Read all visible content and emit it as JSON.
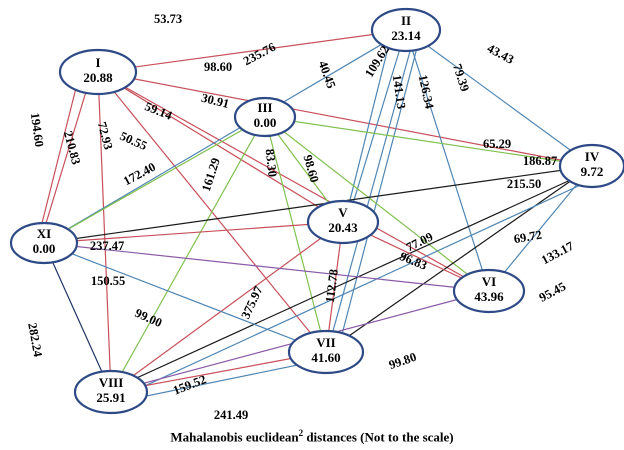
{
  "colors": {
    "red": "#c8505a",
    "blue": "#4f86b4",
    "green": "#7fc04e",
    "black": "#1a1a1a",
    "purple": "#8a5aa8",
    "navy": "#1f3566",
    "node_border": "#2e4a86"
  },
  "nodes": [
    {
      "id": "I",
      "name": "I",
      "value": "20.88"
    },
    {
      "id": "II",
      "name": "II",
      "value": "23.14"
    },
    {
      "id": "III",
      "name": "III",
      "value": "0.00"
    },
    {
      "id": "IV",
      "name": "IV",
      "value": "9.72"
    },
    {
      "id": "V",
      "name": "V",
      "value": "20.43"
    },
    {
      "id": "VI",
      "name": "VI",
      "value": "43.96"
    },
    {
      "id": "VII",
      "name": "VII",
      "value": "41.60"
    },
    {
      "id": "VIII",
      "name": "VIII",
      "value": "25.91"
    },
    {
      "id": "XI",
      "name": "XI",
      "value": "0.00"
    }
  ],
  "edges": [
    {
      "from": "I",
      "to": "II",
      "label": "53.73",
      "color": "red"
    },
    {
      "from": "I",
      "to": "IV",
      "label": "98.60",
      "color": "red"
    },
    {
      "from": "I",
      "to": "V",
      "label": "59.14",
      "color": "red"
    },
    {
      "from": "I",
      "to": "VI",
      "label": "30.91",
      "color": "red"
    },
    {
      "from": "I",
      "to": "VII",
      "label": "50.55",
      "color": "red"
    },
    {
      "from": "I",
      "to": "VIII",
      "label": "72.93",
      "color": "red"
    },
    {
      "from": "I",
      "to": "XI",
      "label": "210.83",
      "color": "red"
    },
    {
      "from": "I",
      "to": "XI",
      "label": "194.60",
      "color": "red"
    },
    {
      "from": "II",
      "to": "XI",
      "label": "235.76",
      "color": "blue"
    },
    {
      "from": "II",
      "to": "IV",
      "label": "43.43",
      "color": "blue"
    },
    {
      "from": "II",
      "to": "V",
      "label": "40.45",
      "color": "blue"
    },
    {
      "from": "II",
      "to": "V",
      "label": "109.62",
      "color": "blue"
    },
    {
      "from": "II",
      "to": "VII",
      "label": "141.13",
      "color": "blue"
    },
    {
      "from": "II",
      "to": "VII",
      "label": "126.34",
      "color": "blue"
    },
    {
      "from": "II",
      "to": "VI",
      "label": "79.39",
      "color": "blue"
    },
    {
      "from": "III",
      "to": "IV",
      "label": "65.29",
      "color": "green"
    },
    {
      "from": "III",
      "to": "XI",
      "label": "172.40",
      "color": "green"
    },
    {
      "from": "III",
      "to": "VIII",
      "label": "161.29",
      "color": "green"
    },
    {
      "from": "III",
      "to": "VII",
      "label": "83.30",
      "color": "green"
    },
    {
      "from": "III",
      "to": "V",
      "label": "98.60",
      "color": "green"
    },
    {
      "from": "III",
      "to": "VI",
      "label": "77.09",
      "color": "green"
    },
    {
      "from": "IV",
      "to": "XI",
      "label": "186.87",
      "color": "black"
    },
    {
      "from": "IV",
      "to": "VIII",
      "label": "215.50",
      "color": "black"
    },
    {
      "from": "IV",
      "to": "VII",
      "label": "69.72",
      "color": "black"
    },
    {
      "from": "IV",
      "to": "VIII",
      "label": "133.17",
      "color": "blue"
    },
    {
      "from": "IV",
      "to": "VI",
      "label": "95.45",
      "color": "blue"
    },
    {
      "from": "V",
      "to": "XI",
      "label": "237.47",
      "color": "red"
    },
    {
      "from": "V",
      "to": "VIII",
      "label": "375.97",
      "color": "red"
    },
    {
      "from": "V",
      "to": "VII",
      "label": "112.78",
      "color": "red"
    },
    {
      "from": "V",
      "to": "VI",
      "label": "96.83",
      "color": "red"
    },
    {
      "from": "XI",
      "to": "VI",
      "label": "150.55",
      "color": "purple"
    },
    {
      "from": "XI",
      "to": "VII",
      "label": "99.00",
      "color": "blue"
    },
    {
      "from": "XI",
      "to": "VIII",
      "label": "282.24",
      "color": "navy"
    },
    {
      "from": "VII",
      "to": "VIII",
      "label": "159.52",
      "color": "red"
    },
    {
      "from": "VI",
      "to": "VIII",
      "label": "99.80",
      "color": "purple"
    },
    {
      "from": "VII",
      "to": "VIII",
      "label": "241.49",
      "color": "blue"
    }
  ],
  "caption": {
    "prefix": "Mahalanobis euclidean",
    "superscript": "2",
    "suffix": " distances (Not to the scale)"
  }
}
